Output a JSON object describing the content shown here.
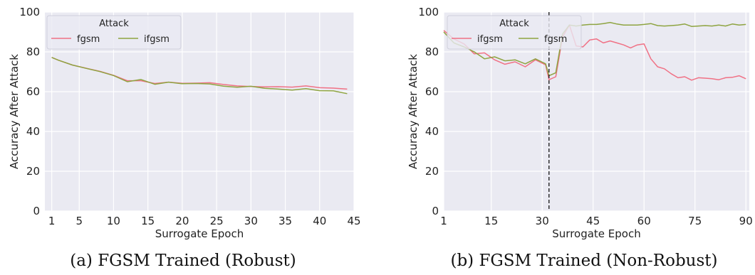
{
  "figure": {
    "captions": [
      "(a) FGSM Trained (Robust)",
      "(b) FGSM Trained (Non-Robust)"
    ]
  },
  "chart_data": [
    {
      "type": "line",
      "xlabel": "Surrogate Epoch",
      "ylabel": "Accuracy After Attack",
      "xlim": [
        0,
        45
      ],
      "ylim": [
        0,
        100
      ],
      "xticks": [
        1,
        5,
        10,
        15,
        20,
        25,
        30,
        35,
        40,
        45
      ],
      "yticks": [
        0,
        20,
        40,
        60,
        80,
        100
      ],
      "grid": true,
      "background": "#eaeaf2",
      "legend": {
        "title": "Attack",
        "placement": "top-left"
      },
      "series": [
        {
          "name": "fgsm",
          "color": "#f07185",
          "x": [
            1,
            2,
            4,
            6,
            8,
            10,
            12,
            14,
            16,
            18,
            20,
            22,
            24,
            26,
            28,
            30,
            32,
            34,
            36,
            38,
            40,
            42,
            44
          ],
          "values": [
            77.2,
            75.8,
            73.4,
            71.8,
            70.2,
            68.2,
            65.5,
            65.5,
            64.1,
            64.8,
            64.2,
            64.3,
            64.5,
            63.6,
            62.9,
            62.6,
            62.4,
            62.5,
            62.3,
            62.9,
            62.0,
            61.8,
            61.3
          ]
        },
        {
          "name": "ifgsm",
          "color": "#8ea441",
          "x": [
            1,
            2,
            4,
            6,
            8,
            10,
            12,
            14,
            16,
            18,
            20,
            22,
            24,
            26,
            28,
            30,
            32,
            34,
            36,
            38,
            40,
            42,
            44
          ],
          "values": [
            77.2,
            75.8,
            73.4,
            71.7,
            70.1,
            68.1,
            65.0,
            66.1,
            63.7,
            64.8,
            64.0,
            64.1,
            63.9,
            62.8,
            62.2,
            62.7,
            61.7,
            61.3,
            60.8,
            61.5,
            60.5,
            60.4,
            59.0
          ]
        }
      ]
    },
    {
      "type": "line",
      "xlabel": "Surrogate Epoch",
      "ylabel": "Accuracy After Attack",
      "xlim": [
        1,
        91
      ],
      "ylim": [
        0,
        100
      ],
      "xticks": [
        1,
        15,
        30,
        45,
        60,
        75,
        90
      ],
      "yticks": [
        0,
        20,
        40,
        60,
        80,
        100
      ],
      "grid": true,
      "background": "#eaeaf2",
      "legend": {
        "title": "Attack",
        "placement": "top-left"
      },
      "vline": {
        "x": 32,
        "style": "dashed",
        "color": "#222222"
      },
      "series": [
        {
          "name": "ifgsm",
          "color": "#f07185",
          "x": [
            1,
            4,
            7,
            10,
            13,
            16,
            19,
            22,
            25,
            28,
            31,
            32,
            34,
            36,
            38,
            40,
            42,
            44,
            46,
            48,
            50,
            52,
            54,
            56,
            58,
            60,
            62,
            64,
            66,
            68,
            70,
            72,
            74,
            76,
            78,
            80,
            82,
            84,
            86,
            88,
            90
          ],
          "values": [
            90.8,
            86.5,
            84.0,
            79.0,
            79.5,
            76.0,
            73.8,
            75.0,
            72.5,
            76.0,
            73.5,
            66.0,
            67.5,
            87.5,
            93.5,
            83.0,
            82.5,
            86.0,
            86.5,
            84.5,
            85.5,
            84.5,
            83.5,
            82.0,
            83.5,
            84.0,
            76.5,
            72.5,
            71.5,
            69.0,
            67.0,
            67.5,
            65.8,
            67.0,
            66.8,
            66.5,
            66.0,
            67.0,
            67.2,
            68.0,
            66.5
          ]
        },
        {
          "name": "fgsm",
          "color": "#8ea441",
          "x": [
            1,
            4,
            7,
            10,
            13,
            16,
            19,
            22,
            25,
            28,
            31,
            32,
            34,
            36,
            38,
            40,
            42,
            44,
            46,
            48,
            50,
            52,
            54,
            56,
            58,
            60,
            62,
            64,
            66,
            68,
            70,
            72,
            74,
            76,
            78,
            80,
            82,
            84,
            86,
            88,
            90
          ],
          "values": [
            90.0,
            84.5,
            82.5,
            80.0,
            76.5,
            77.5,
            75.5,
            76.0,
            74.0,
            76.5,
            74.0,
            68.0,
            69.5,
            89.0,
            93.5,
            93.0,
            93.5,
            93.8,
            93.8,
            94.2,
            94.8,
            94.0,
            93.5,
            93.5,
            93.5,
            93.8,
            94.2,
            93.2,
            93.0,
            93.2,
            93.5,
            94.0,
            92.8,
            93.0,
            93.2,
            93.0,
            93.5,
            93.0,
            94.0,
            93.5,
            93.8
          ]
        }
      ]
    }
  ]
}
